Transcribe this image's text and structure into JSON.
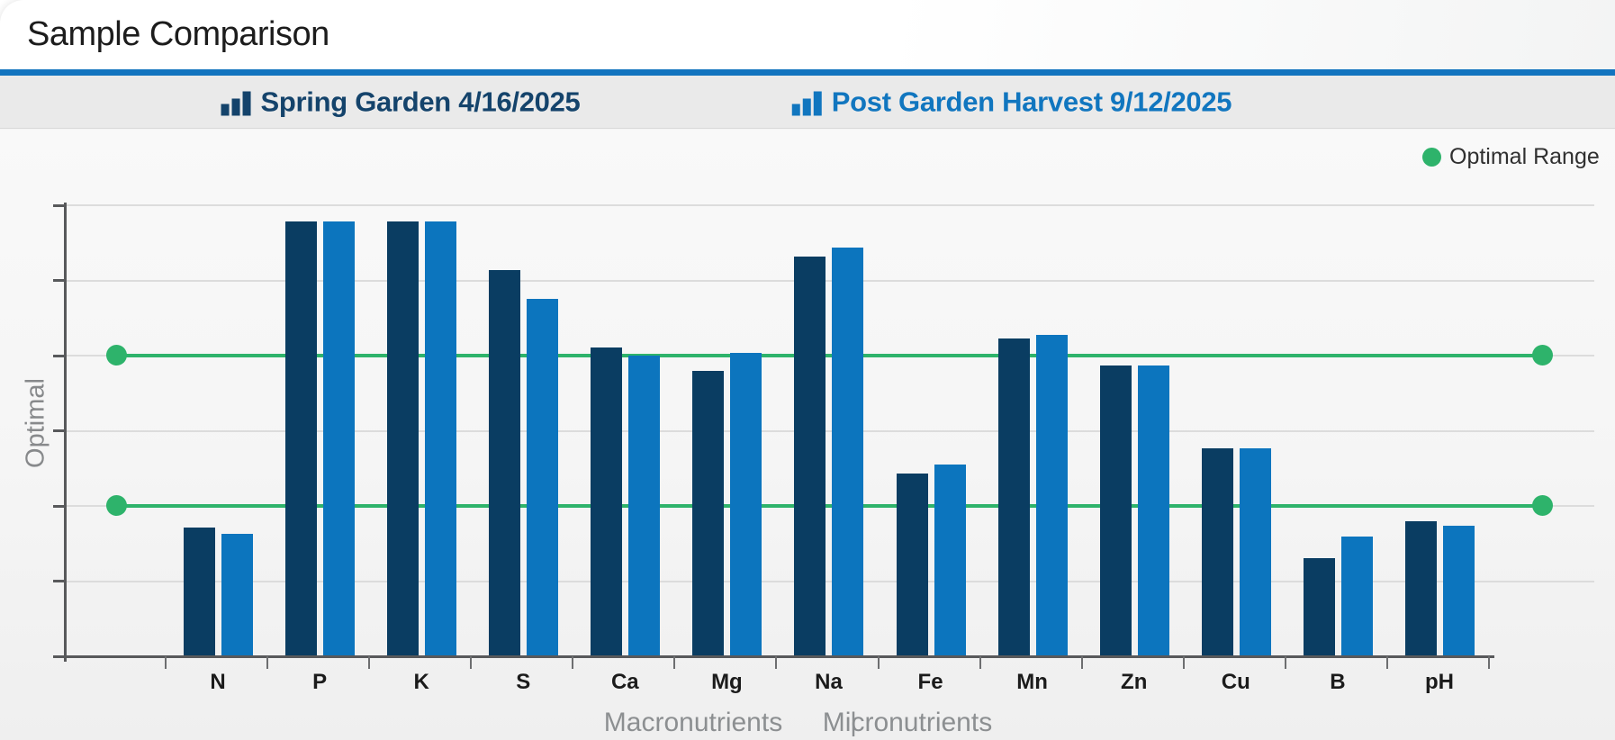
{
  "header": {
    "title": "Sample Comparison"
  },
  "colors": {
    "accent_rule": "#1274bf",
    "series_dark": "#0a3d62",
    "series_light": "#0c75be",
    "optimal_green": "#2eb36b",
    "axis_gray": "#58595b"
  },
  "series_legend": [
    {
      "label": "Spring Garden 4/16/2025",
      "color": "#0a3d62",
      "icon": "bar-chart-icon"
    },
    {
      "label": "Post Garden Harvest 9/12/2025",
      "color": "#0c75be",
      "icon": "bar-chart-icon"
    }
  ],
  "optimal_legend": {
    "label": "Optimal Range",
    "color": "#2eb36b",
    "icon": "dot-icon"
  },
  "axis": {
    "group_separator": "|"
  },
  "chart_data": {
    "type": "bar",
    "title": "Sample Comparison",
    "categories": [
      "N",
      "P",
      "K",
      "S",
      "Ca",
      "Mg",
      "Na",
      "Fe",
      "Mn",
      "Zn",
      "Cu",
      "B",
      "pH"
    ],
    "series": [
      {
        "name": "Spring Garden 4/16/2025",
        "color": "#0a3d62",
        "values": [
          1.71,
          5.78,
          5.78,
          5.13,
          4.1,
          3.79,
          5.31,
          2.43,
          4.22,
          3.86,
          2.76,
          1.3,
          1.8
        ]
      },
      {
        "name": "Post Garden Harvest 9/12/2025",
        "color": "#0c75be",
        "values": [
          1.63,
          5.78,
          5.78,
          4.75,
          4.0,
          4.03,
          5.43,
          2.55,
          4.27,
          3.86,
          2.76,
          1.59,
          1.73
        ]
      }
    ],
    "optimal_range": {
      "low": 2,
      "high": 4,
      "label": "Optimal Range",
      "color": "#2eb36b"
    },
    "ylabel": "Optimal",
    "xlabel_groups": [
      "Macronutrients",
      "Micronutrients"
    ],
    "group_split_after": "Na",
    "ylim": [
      0,
      6.4
    ],
    "yticks": [
      0,
      1,
      2,
      3,
      4,
      5,
      6
    ],
    "y_tick_labels_shown": false,
    "grid": true,
    "legend_position": "top"
  }
}
